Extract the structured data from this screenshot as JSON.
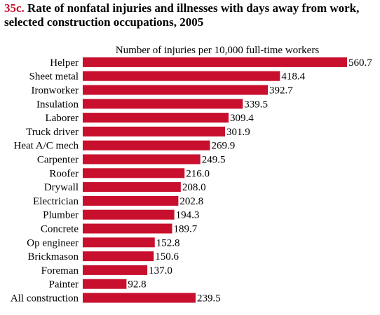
{
  "figure_number": "35c.",
  "title_line1": "Rate of nonfatal injuries and illnesses with days away from work,",
  "title_line2": "selected construction occupations, 2005",
  "bar_color": "#c8102e",
  "chart_data": {
    "type": "bar",
    "orientation": "horizontal",
    "subtitle": "Number of injuries per 10,000 full-time workers",
    "categories": [
      "Helper",
      "Sheet metal",
      "Ironworker",
      "Insulation",
      "Laborer",
      "Truck driver",
      "Heat A/C mech",
      "Carpenter",
      "Roofer",
      "Drywall",
      "Electrician",
      "Plumber",
      "Concrete",
      "Op engineer",
      "Brickmason",
      "Foreman",
      "Painter",
      "All construction"
    ],
    "values": [
      560.7,
      418.4,
      392.7,
      339.5,
      309.4,
      301.9,
      269.9,
      249.5,
      216.0,
      208.0,
      202.8,
      194.3,
      189.7,
      152.8,
      150.6,
      137.0,
      92.8,
      239.5
    ],
    "value_labels": [
      "560.7",
      "418.4",
      "392.7",
      "339.5",
      "309.4",
      "301.9",
      "269.9",
      "249.5",
      "216.0",
      "208.0",
      "202.8",
      "194.3",
      "189.7",
      "152.8",
      "150.6",
      "137.0",
      "92.8",
      "239.5"
    ],
    "xlim": [
      0,
      560.7
    ],
    "grid": false,
    "legend": "none"
  }
}
